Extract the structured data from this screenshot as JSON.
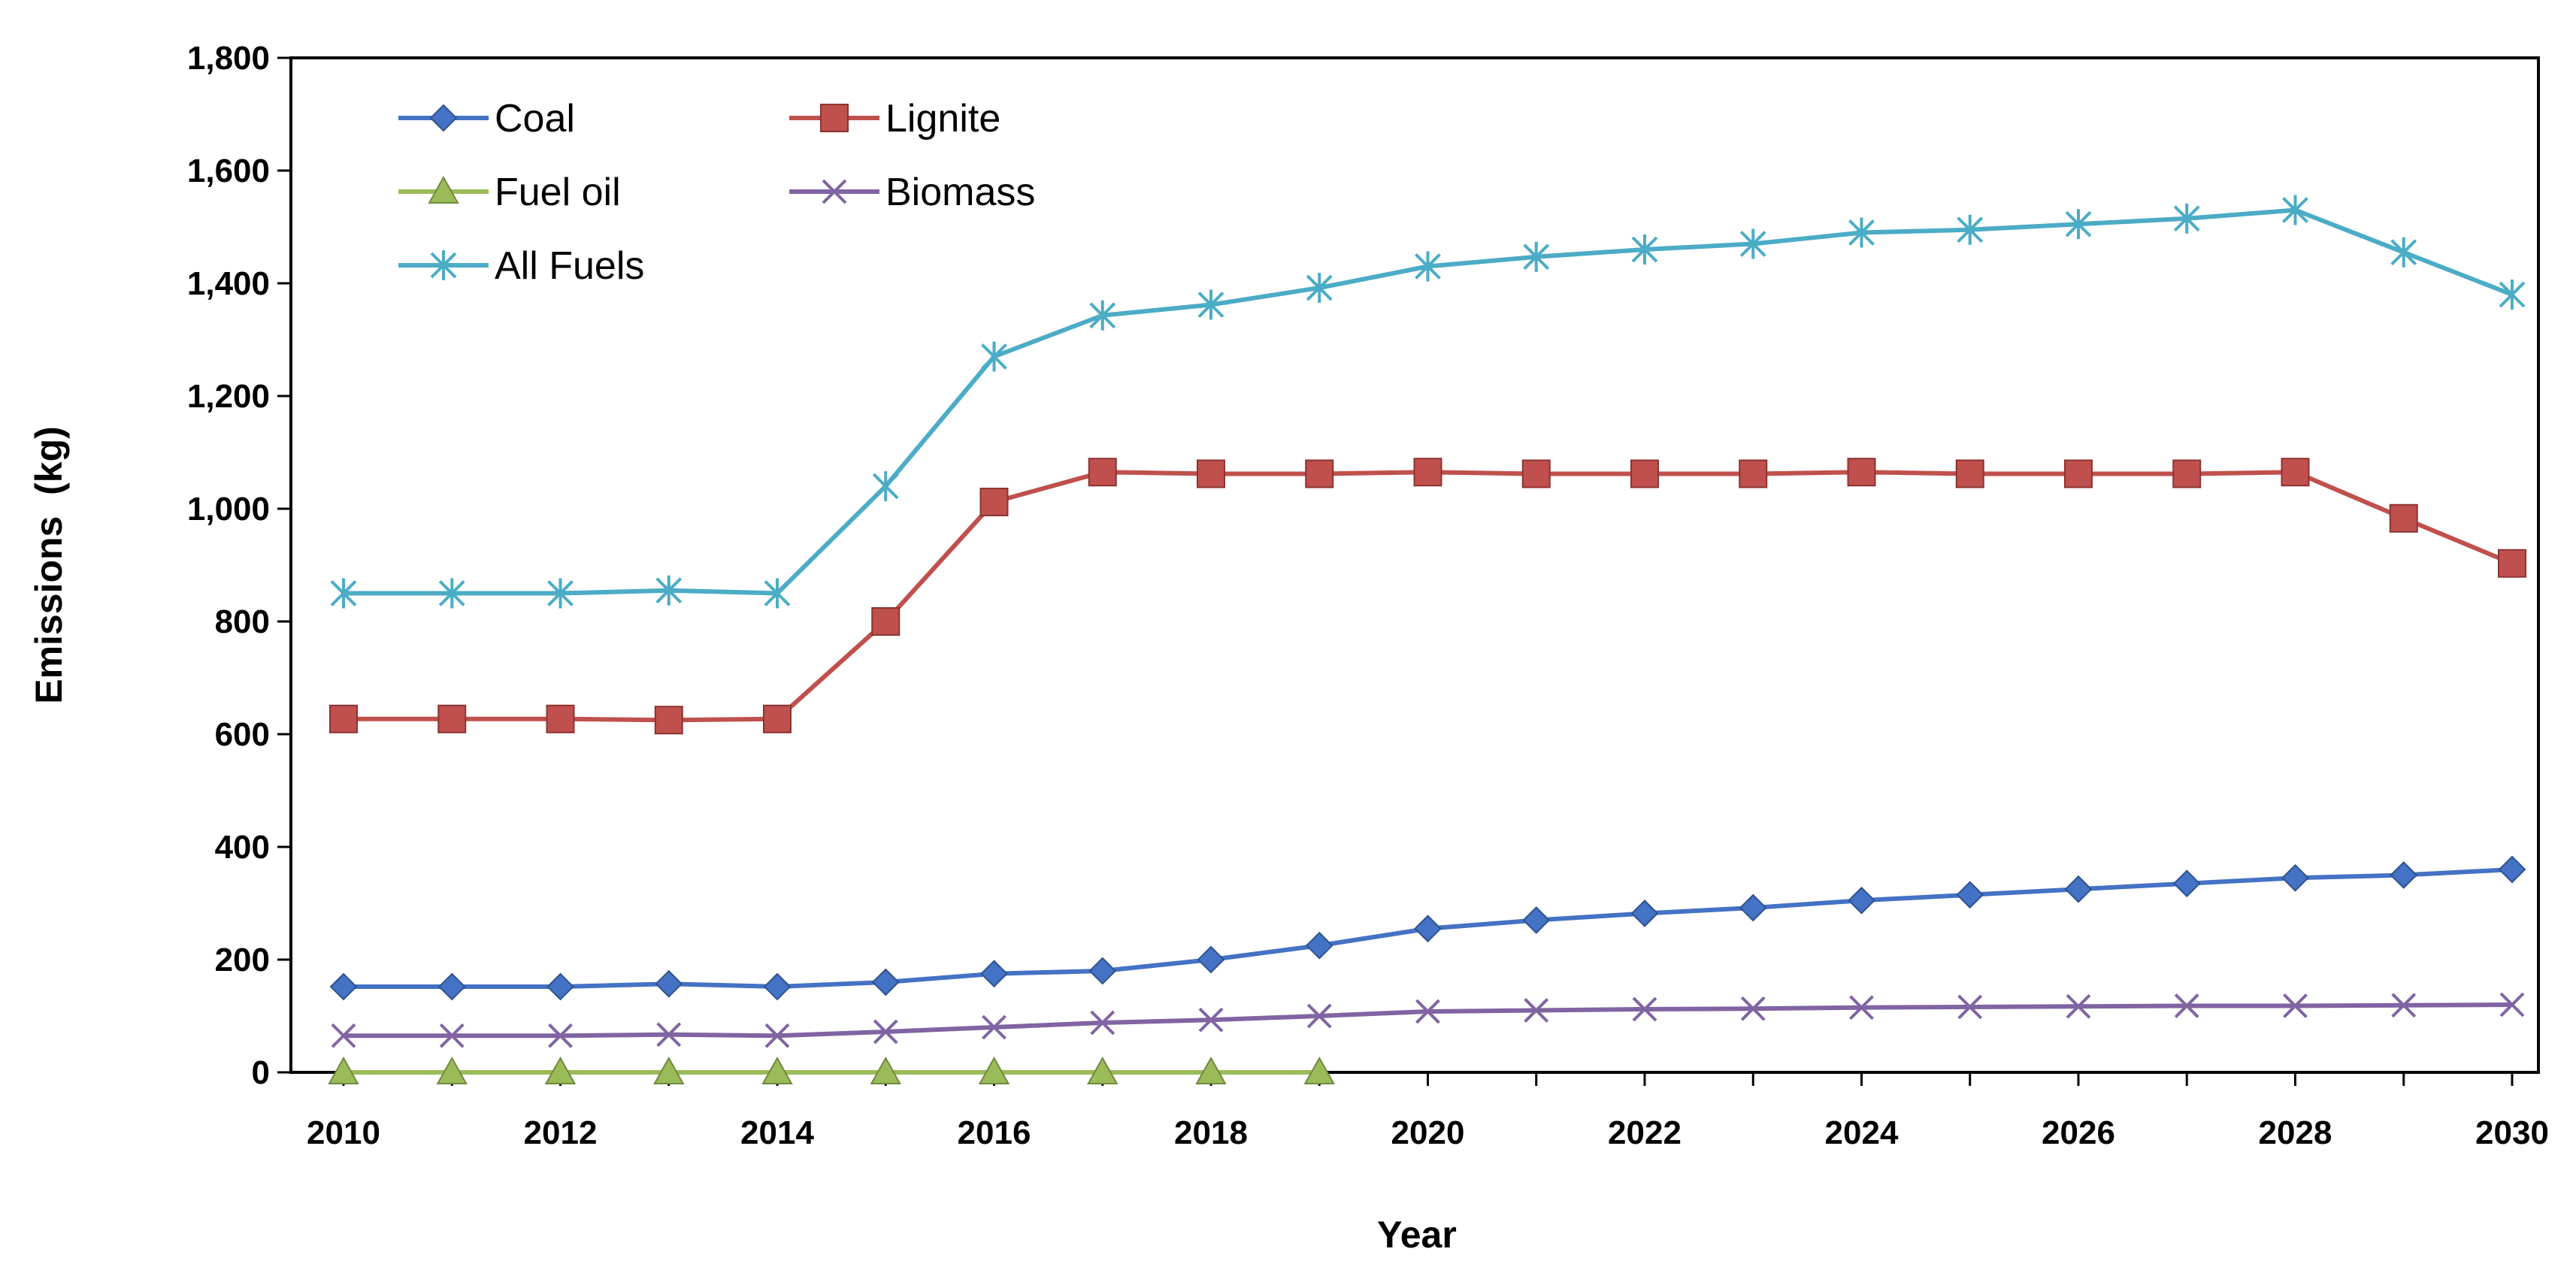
{
  "chart_data": {
    "type": "line",
    "title": "",
    "xlabel": "Year",
    "ylabel": "Emissions  (kg)",
    "x": [
      2010,
      2011,
      2012,
      2013,
      2014,
      2015,
      2016,
      2017,
      2018,
      2019,
      2020,
      2021,
      2022,
      2023,
      2024,
      2025,
      2026,
      2027,
      2028,
      2029,
      2030
    ],
    "xlim": [
      2010,
      2030
    ],
    "ylim": [
      0,
      1800
    ],
    "x_tick_labels": [
      "2010",
      "2012",
      "2014",
      "2016",
      "2018",
      "2020",
      "2022",
      "2024",
      "2026",
      "2028",
      "2030"
    ],
    "y_tick_labels": [
      "0",
      "200",
      "400",
      "600",
      "800",
      "1,000",
      "1,200",
      "1,400",
      "1,600",
      "1,800"
    ],
    "y_tick_values": [
      0,
      200,
      400,
      600,
      800,
      1000,
      1200,
      1400,
      1600,
      1800
    ],
    "x_tick_values": [
      2010,
      2012,
      2014,
      2016,
      2018,
      2020,
      2022,
      2024,
      2026,
      2028,
      2030
    ],
    "grid": false,
    "legend_position": "top-left",
    "series": [
      {
        "name": "Coal",
        "color": "#4472c4",
        "marker": "diamond",
        "values": [
          152,
          152,
          152,
          157,
          152,
          160,
          175,
          180,
          200,
          225,
          255,
          270,
          282,
          292,
          305,
          315,
          325,
          335,
          345,
          350,
          360
        ]
      },
      {
        "name": "Lignite",
        "color": "#c0504d",
        "marker": "square",
        "values": [
          627,
          627,
          627,
          625,
          627,
          800,
          1012,
          1065,
          1062,
          1062,
          1065,
          1062,
          1062,
          1062,
          1065,
          1062,
          1062,
          1062,
          1065,
          983,
          903
        ]
      },
      {
        "name": "Fuel oil",
        "color": "#9bbb59",
        "marker": "triangle",
        "values": [
          0,
          0,
          0,
          0,
          0,
          0,
          0,
          0,
          0,
          0,
          null,
          null,
          null,
          null,
          null,
          null,
          null,
          null,
          null,
          null,
          null
        ]
      },
      {
        "name": "Biomass",
        "color": "#8064a2",
        "marker": "x",
        "values": [
          65,
          65,
          65,
          67,
          65,
          72,
          80,
          88,
          93,
          100,
          108,
          110,
          112,
          113,
          115,
          116,
          117,
          118,
          118,
          119,
          120
        ]
      },
      {
        "name": "All Fuels",
        "color": "#4bacc6",
        "marker": "star",
        "values": [
          850,
          850,
          850,
          855,
          850,
          1040,
          1270,
          1343,
          1362,
          1392,
          1430,
          1447,
          1460,
          1470,
          1490,
          1495,
          1505,
          1515,
          1530,
          1455,
          1380
        ]
      }
    ]
  }
}
